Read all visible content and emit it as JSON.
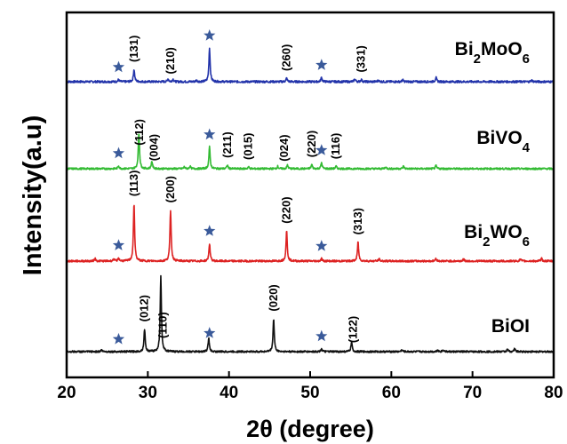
{
  "chart_data": {
    "type": "line",
    "xlabel": "2θ (degree)",
    "ylabel": "Intensity(a.u)",
    "xlim": [
      20,
      80
    ],
    "x_ticks": [
      20,
      30,
      40,
      50,
      60,
      70,
      80
    ],
    "grid": false,
    "legend": "series names printed at right of each trace",
    "star_color": "#3a5a9a",
    "series": [
      {
        "name": "Bi2MoO6",
        "name_parts": [
          [
            "Bi",
            false
          ],
          [
            "2",
            true
          ],
          [
            "MoO",
            false
          ],
          [
            "6",
            true
          ]
        ],
        "color": "#2233aa",
        "baseline": 1.0,
        "peaks": [
          [
            26.4,
            0.06
          ],
          [
            28.3,
            0.35
          ],
          [
            32.5,
            0.08
          ],
          [
            33.1,
            0.07
          ],
          [
            36.0,
            0.04
          ],
          [
            37.6,
            0.95
          ],
          [
            47.1,
            0.1
          ],
          [
            51.4,
            0.12
          ],
          [
            55.5,
            0.08
          ],
          [
            56.3,
            0.06
          ],
          [
            58.4,
            0.04
          ],
          [
            61.4,
            0.05
          ],
          [
            65.5,
            0.12
          ],
          [
            77.3,
            0.04
          ]
        ],
        "stars": [
          26.4,
          37.6,
          51.4
        ],
        "labels": [
          {
            "x": 28.3,
            "text": "(131)"
          },
          {
            "x": 32.8,
            "text": "(210)"
          },
          {
            "x": 47.1,
            "text": "(260)"
          },
          {
            "x": 56.3,
            "text": "(331)"
          }
        ]
      },
      {
        "name": "BiVO4",
        "name_parts": [
          [
            "BiVO",
            false
          ],
          [
            "4",
            true
          ]
        ],
        "color": "#33bb33",
        "baseline": 1.0,
        "peaks": [
          [
            26.4,
            0.1
          ],
          [
            28.9,
            1.2
          ],
          [
            30.5,
            0.25
          ],
          [
            34.5,
            0.06
          ],
          [
            35.2,
            0.08
          ],
          [
            37.6,
            0.72
          ],
          [
            39.8,
            0.12
          ],
          [
            42.4,
            0.06
          ],
          [
            46.0,
            0.08
          ],
          [
            47.2,
            0.12
          ],
          [
            50.2,
            0.14
          ],
          [
            51.4,
            0.2
          ],
          [
            53.2,
            0.08
          ],
          [
            59.3,
            0.06
          ],
          [
            61.5,
            0.08
          ],
          [
            65.5,
            0.1
          ]
        ],
        "stars": [
          26.4,
          37.6,
          51.4
        ],
        "labels": [
          {
            "x": 29.0,
            "text": "(112)"
          },
          {
            "x": 30.8,
            "text": "(004)"
          },
          {
            "x": 39.8,
            "text": "(211)"
          },
          {
            "x": 42.4,
            "text": "(015)"
          },
          {
            "x": 46.8,
            "text": "(024)"
          },
          {
            "x": 50.2,
            "text": "(220)"
          },
          {
            "x": 53.2,
            "text": "(116)"
          }
        ]
      },
      {
        "name": "Bi2WO6",
        "name_parts": [
          [
            "Bi",
            false
          ],
          [
            "2",
            true
          ],
          [
            "WO",
            false
          ],
          [
            "6",
            true
          ]
        ],
        "color": "#dd2222",
        "baseline": 1.0,
        "peaks": [
          [
            23.5,
            0.08
          ],
          [
            25.8,
            0.06
          ],
          [
            26.4,
            0.1
          ],
          [
            28.3,
            1.8
          ],
          [
            32.8,
            1.6
          ],
          [
            37.6,
            0.55
          ],
          [
            47.1,
            0.95
          ],
          [
            51.4,
            0.08
          ],
          [
            55.9,
            0.6
          ],
          [
            58.5,
            0.06
          ],
          [
            65.5,
            0.08
          ],
          [
            68.9,
            0.06
          ],
          [
            75.9,
            0.06
          ],
          [
            78.5,
            0.08
          ]
        ],
        "stars": [
          26.4,
          37.6,
          51.4
        ],
        "labels": [
          {
            "x": 28.3,
            "text": "(113)"
          },
          {
            "x": 32.8,
            "text": "(200)"
          },
          {
            "x": 47.1,
            "text": "(220)"
          },
          {
            "x": 55.9,
            "text": "(313)"
          }
        ]
      },
      {
        "name": "BiOI",
        "name_parts": [
          [
            "BiOI",
            false
          ]
        ],
        "color": "#111111",
        "baseline": 1.0,
        "peaks": [
          [
            24.3,
            0.06
          ],
          [
            29.6,
            0.75
          ],
          [
            31.6,
            2.5
          ],
          [
            37.5,
            0.45
          ],
          [
            45.5,
            1.1
          ],
          [
            51.4,
            0.1
          ],
          [
            55.1,
            0.32
          ],
          [
            61.3,
            0.06
          ],
          [
            65.7,
            0.06
          ],
          [
            66.4,
            0.06
          ],
          [
            74.3,
            0.08
          ],
          [
            75.2,
            0.1
          ]
        ],
        "stars": [
          26.4,
          37.6,
          51.4
        ],
        "labels": [
          {
            "x": 29.6,
            "text": "(012)"
          },
          {
            "x": 31.9,
            "text": "(110)"
          },
          {
            "x": 45.5,
            "text": "(020)"
          },
          {
            "x": 55.3,
            "text": "(122)"
          }
        ]
      }
    ]
  }
}
